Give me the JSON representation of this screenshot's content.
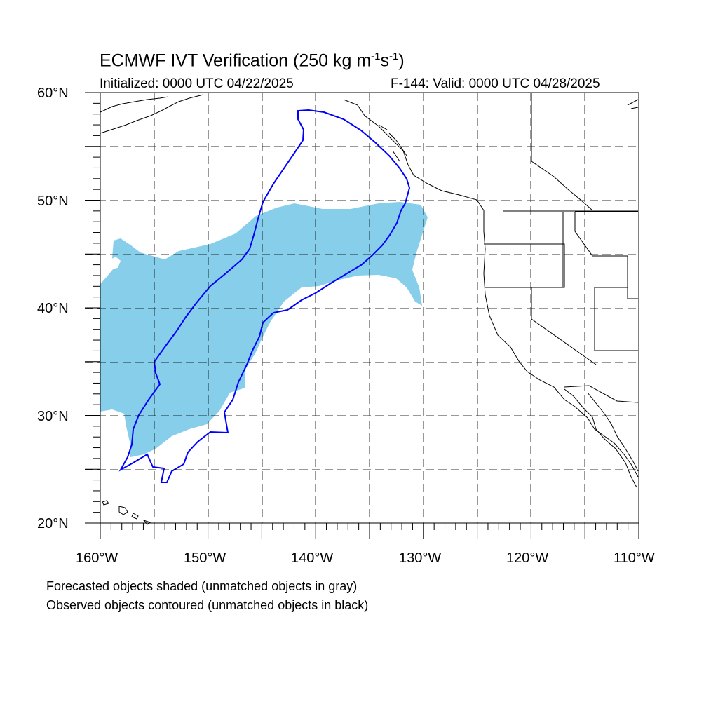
{
  "header": {
    "title_main": "ECMWF IVT Verification (250 kg m",
    "title_exp1": "-1",
    "title_mid": "s",
    "title_exp2": "-1",
    "title_end": ")",
    "initialized": "Initialized: 0000 UTC 04/22/2025",
    "valid": "F-144: Valid: 0000 UTC 04/28/2025"
  },
  "axes": {
    "lat_labels": [
      "60°N",
      "50°N",
      "40°N",
      "30°N",
      "20°N"
    ],
    "lon_labels": [
      "160°W",
      "150°W",
      "140°W",
      "130°W",
      "120°W",
      "110°W"
    ],
    "lat_range": [
      20,
      60
    ],
    "lon_range": [
      -160,
      -110
    ],
    "grid": true,
    "grid_style": "dashed"
  },
  "layers": {
    "forecast_color": "#87ceeb",
    "observed_color": "#0000ff",
    "coast_color": "#000000"
  },
  "footer": {
    "line1": "Forecasted objects shaded (unmatched objects in gray)",
    "line2": "Observed objects contoured (unmatched objects in black)"
  }
}
